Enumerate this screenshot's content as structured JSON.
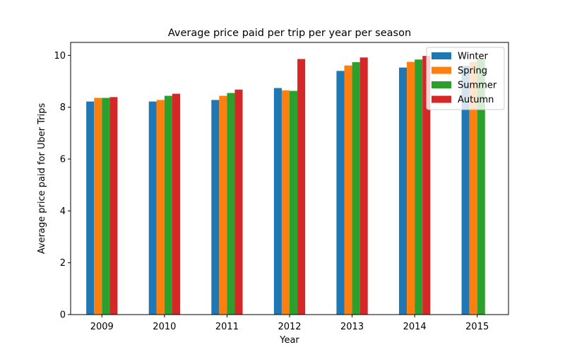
{
  "chart_data": {
    "type": "bar",
    "title": "Average price paid per trip per year per season",
    "xlabel": "Year",
    "ylabel": "Average price paid for Uber Trips",
    "categories": [
      "2009",
      "2010",
      "2011",
      "2012",
      "2013",
      "2014",
      "2015"
    ],
    "ylim": [
      0,
      10.5
    ],
    "yticks": [
      0,
      2,
      4,
      6,
      8,
      10
    ],
    "legend_position": "top-right",
    "series": [
      {
        "name": "Winter",
        "color": "#1f77b4",
        "values": [
          8.22,
          8.22,
          8.28,
          8.74,
          9.4,
          9.53,
          9.6
        ]
      },
      {
        "name": "Spring",
        "color": "#ff7f0e",
        "values": [
          8.36,
          8.28,
          8.44,
          8.65,
          9.61,
          9.75,
          9.75
        ]
      },
      {
        "name": "Summer",
        "color": "#2ca02c",
        "values": [
          8.36,
          8.44,
          8.55,
          8.63,
          9.74,
          9.84,
          9.85
        ]
      },
      {
        "name": "Autumn",
        "color": "#d62728",
        "values": [
          8.39,
          8.52,
          8.68,
          9.86,
          9.92,
          9.98,
          null
        ]
      }
    ]
  }
}
